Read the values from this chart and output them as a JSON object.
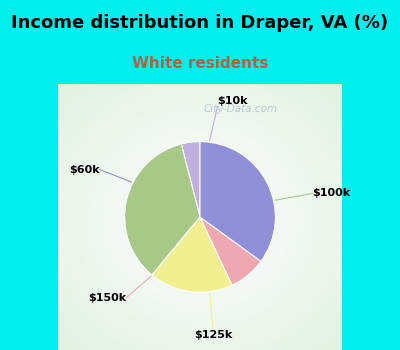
{
  "title": "Income distribution in Draper, VA (%)",
  "subtitle": "White residents",
  "title_fontsize": 13,
  "subtitle_fontsize": 11,
  "title_color": "#000000",
  "subtitle_color": "#aa6644",
  "background_color": "#00EEEE",
  "labels": [
    "$10k",
    "$100k",
    "$125k",
    "$150k",
    "$60k"
  ],
  "sizes": [
    4,
    35,
    18,
    8,
    35
  ],
  "colors": [
    "#c0b0e0",
    "#a8c888",
    "#f0f090",
    "#f0a8b0",
    "#9090d8"
  ],
  "startangle": 90,
  "wedge_edge_color": "white",
  "wedge_edge_width": 0.8
}
